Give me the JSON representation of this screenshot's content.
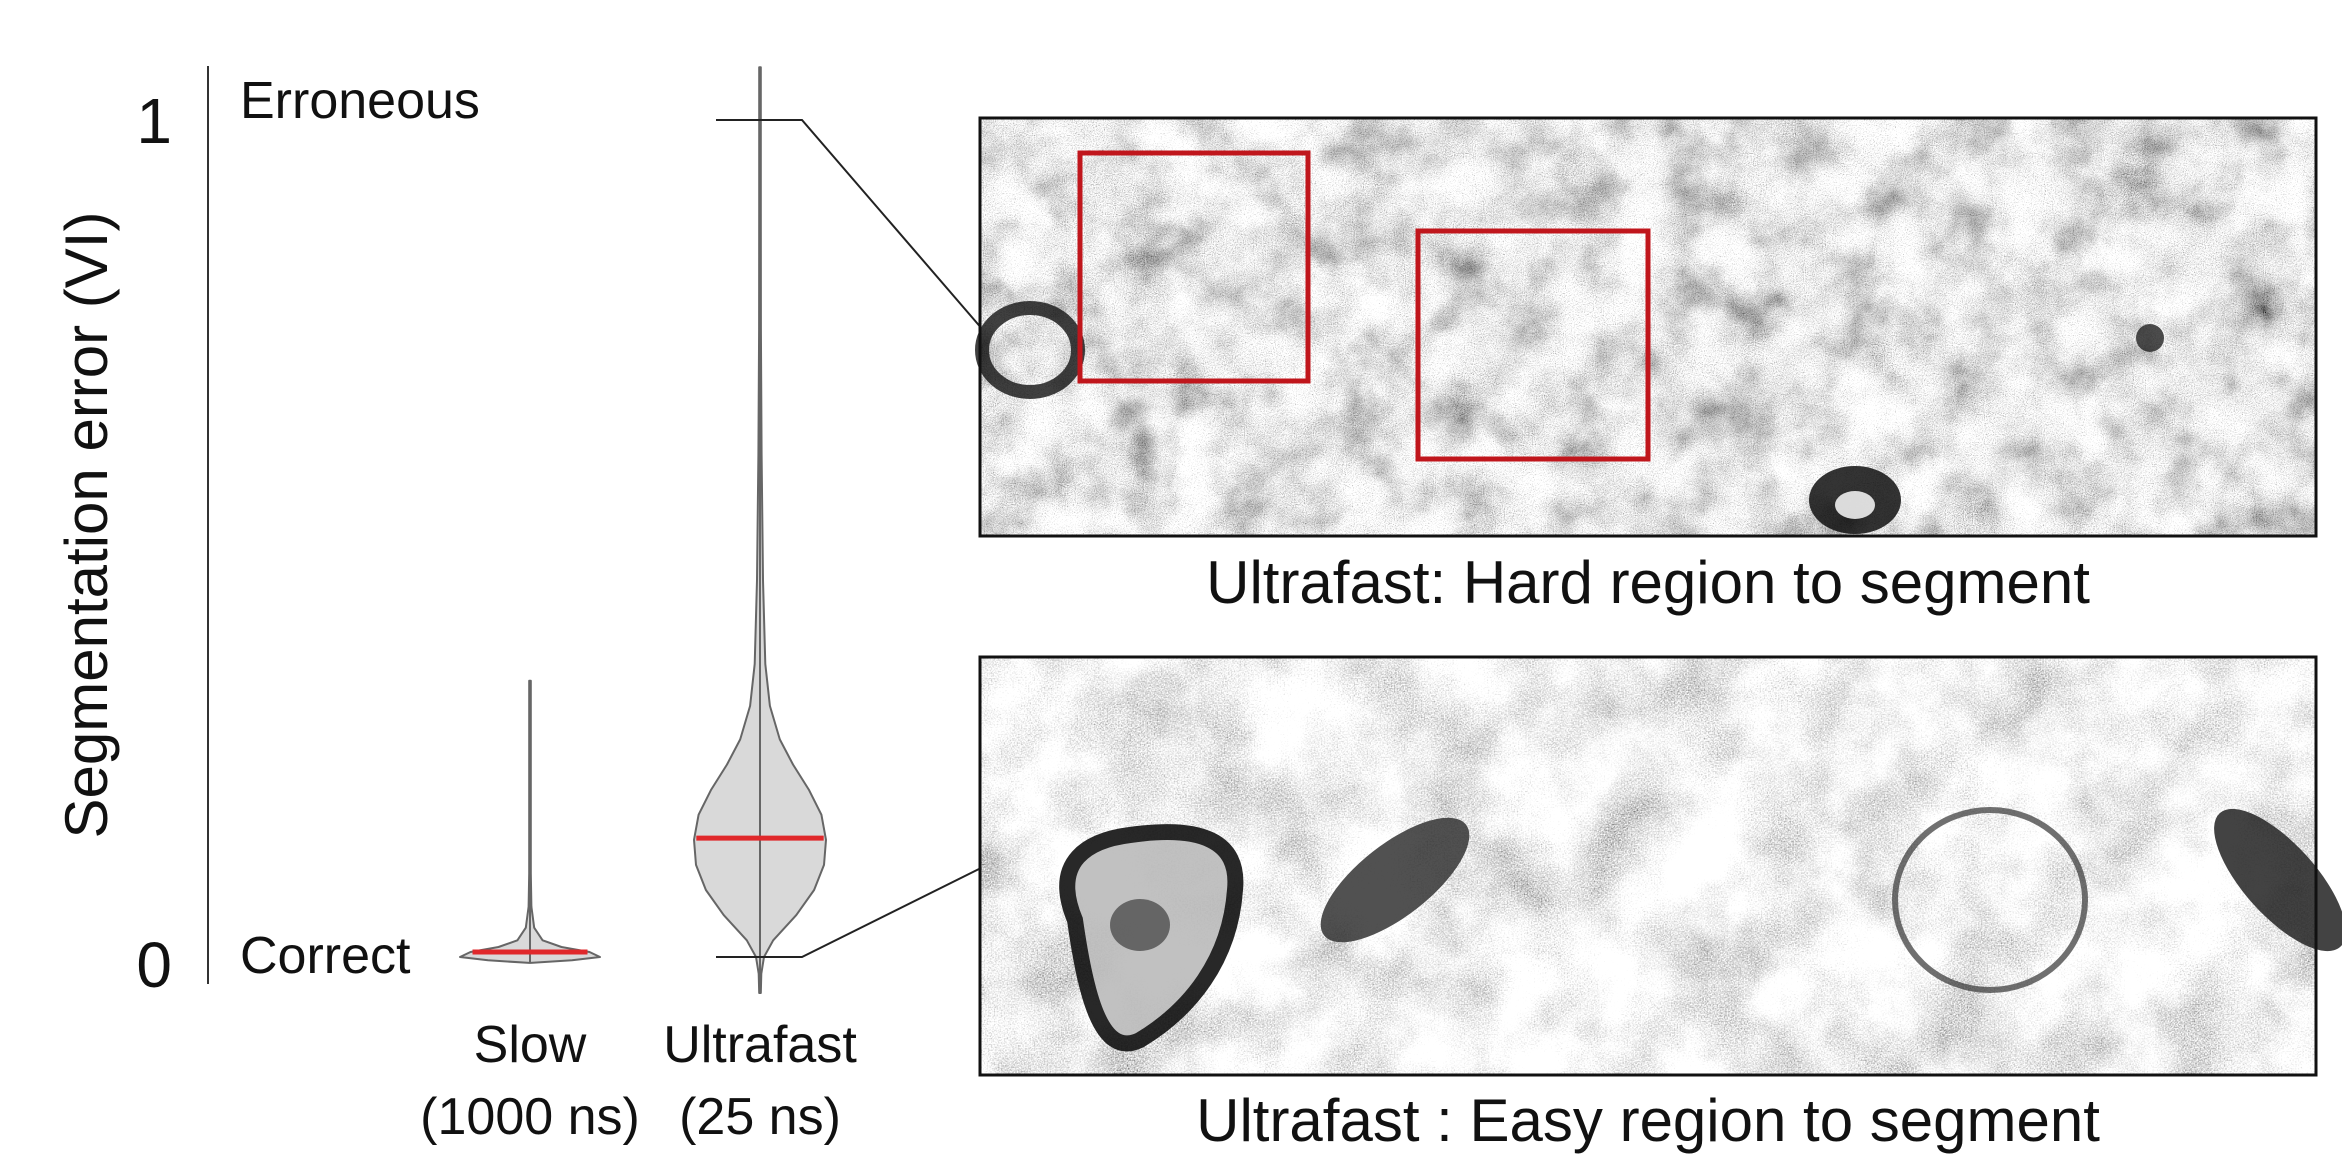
{
  "chart_data": {
    "type": "violin",
    "ylabel": "Segmentation error (VI)",
    "ylim": [
      0,
      1
    ],
    "y_ticks": [
      "0",
      "1"
    ],
    "y_tick_values": [
      0,
      1
    ],
    "annotations": {
      "top": "Erroneous",
      "bottom": "Correct"
    },
    "categories": [
      {
        "line1": "Slow",
        "line2": "(1000 ns)"
      },
      {
        "line1": "Ultrafast",
        "line2": "(25 ns)"
      }
    ],
    "series": [
      {
        "category_index": 0,
        "median": 0.006,
        "min": -0.007,
        "max": 0.33,
        "profile": [
          [
            -0.007,
            0.0
          ],
          [
            -0.004,
            0.6
          ],
          [
            0.0,
            1.0
          ],
          [
            0.006,
            0.85
          ],
          [
            0.012,
            0.45
          ],
          [
            0.02,
            0.18
          ],
          [
            0.035,
            0.06
          ],
          [
            0.06,
            0.02
          ],
          [
            0.1,
            0.008
          ],
          [
            0.33,
            0.0
          ]
        ]
      },
      {
        "category_index": 1,
        "median": 0.142,
        "min": -0.043,
        "max": 1.063,
        "profile": [
          [
            -0.043,
            0.0
          ],
          [
            -0.02,
            0.02
          ],
          [
            0.0,
            0.06
          ],
          [
            0.02,
            0.2
          ],
          [
            0.05,
            0.55
          ],
          [
            0.08,
            0.82
          ],
          [
            0.11,
            0.97
          ],
          [
            0.14,
            1.0
          ],
          [
            0.17,
            0.93
          ],
          [
            0.2,
            0.74
          ],
          [
            0.23,
            0.5
          ],
          [
            0.26,
            0.3
          ],
          [
            0.3,
            0.15
          ],
          [
            0.35,
            0.08
          ],
          [
            0.45,
            0.045
          ],
          [
            0.6,
            0.025
          ],
          [
            0.75,
            0.014
          ],
          [
            0.9,
            0.008
          ],
          [
            1.0,
            0.005
          ],
          [
            1.063,
            0.0
          ]
        ]
      }
    ],
    "colors": {
      "violin_fill": "#d9d9d9",
      "violin_stroke": "#666666",
      "median": "#e0282b",
      "box": "#c0161c"
    }
  },
  "panels": {
    "hard": {
      "caption": "Ultrafast: Hard region to segment",
      "linked_value": 1
    },
    "easy": {
      "caption": "Ultrafast : Easy region to segment",
      "linked_value": 0
    }
  }
}
